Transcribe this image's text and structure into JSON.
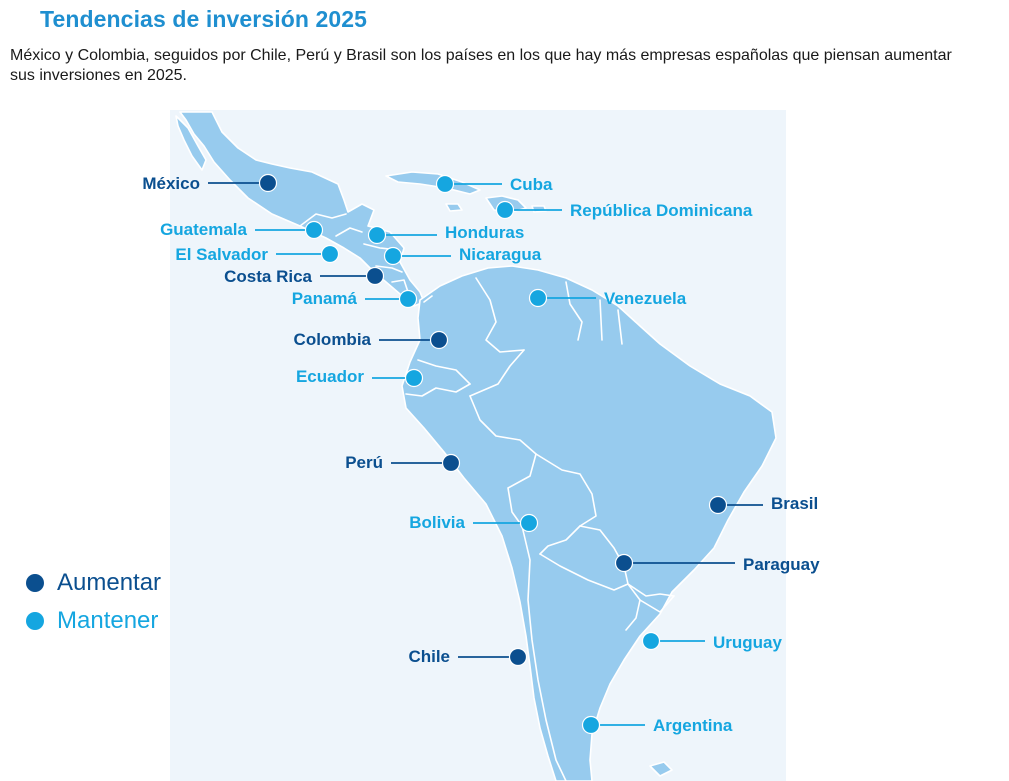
{
  "header": {
    "title": "Tendencias de inversión 2025",
    "intro": "México y Colombia, seguidos por Chile, Perú y Brasil son los países en los que hay más empresas españolas que piensan aumentar sus inversiones en 2025."
  },
  "legend": {
    "aumentar": "Aumentar",
    "mantener": "Mantener"
  },
  "colors": {
    "aumentar": "#0b4f8f",
    "mantener": "#15a6e0",
    "land": "#97cbee",
    "border": "#ffffff",
    "title": "#1f8fd0"
  },
  "countries": [
    {
      "name": "México",
      "status": "aumentar"
    },
    {
      "name": "Cuba",
      "status": "mantener"
    },
    {
      "name": "República Dominicana",
      "status": "mantener"
    },
    {
      "name": "Guatemala",
      "status": "mantener"
    },
    {
      "name": "Honduras",
      "status": "mantener"
    },
    {
      "name": "El Salvador",
      "status": "mantener"
    },
    {
      "name": "Nicaragua",
      "status": "mantener"
    },
    {
      "name": "Costa Rica",
      "status": "aumentar"
    },
    {
      "name": "Panamá",
      "status": "mantener"
    },
    {
      "name": "Venezuela",
      "status": "mantener"
    },
    {
      "name": "Colombia",
      "status": "aumentar"
    },
    {
      "name": "Ecuador",
      "status": "mantener"
    },
    {
      "name": "Perú",
      "status": "aumentar"
    },
    {
      "name": "Brasil",
      "status": "aumentar"
    },
    {
      "name": "Bolivia",
      "status": "mantener"
    },
    {
      "name": "Paraguay",
      "status": "aumentar"
    },
    {
      "name": "Uruguay",
      "status": "mantener"
    },
    {
      "name": "Chile",
      "status": "aumentar"
    },
    {
      "name": "Argentina",
      "status": "mantener"
    }
  ]
}
